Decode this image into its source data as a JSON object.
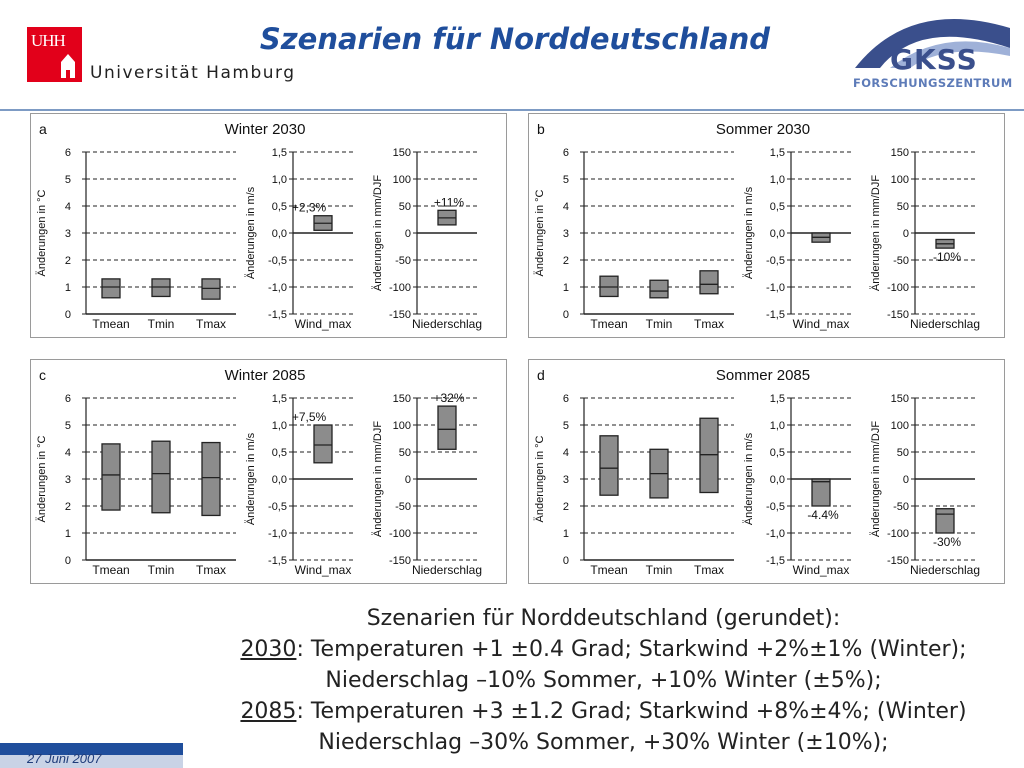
{
  "header": {
    "title": "Szenarien für Norddeutschland",
    "uhh_logo_text": "UHH",
    "university": "Universität Hamburg",
    "gkss": "GKSS",
    "gkss_sub": "FORSCHUNGSZENTRUM"
  },
  "colors": {
    "title": "#1f4e9c",
    "box_fill": "#8c8c8c",
    "uhh_red": "#e2001a"
  },
  "chart_data": [
    {
      "panel_letter": "a",
      "title": "Winter 2030",
      "type": "box",
      "subcharts": [
        {
          "ylabel": "Änderungen in °C",
          "ylim": [
            0,
            6
          ],
          "ticks": [
            "0",
            "1",
            "2",
            "3",
            "4",
            "5",
            "6"
          ],
          "tick_values": [
            0,
            1,
            2,
            3,
            4,
            5,
            6
          ],
          "categories": [
            "Tmean",
            "Tmin",
            "Tmax"
          ],
          "boxes": [
            {
              "low": 0.6,
              "high": 1.3,
              "mid": 1.0
            },
            {
              "low": 0.65,
              "high": 1.3,
              "mid": 1.0
            },
            {
              "low": 0.55,
              "high": 1.3,
              "mid": 0.95
            }
          ]
        },
        {
          "ylabel": "Änderungen in m/s",
          "ylim": [
            -1.5,
            1.5
          ],
          "ticks": [
            "-1,5",
            "-1,0",
            "-0,5",
            "0,0",
            "0,5",
            "1,0",
            "1,5"
          ],
          "tick_values": [
            -1.5,
            -1,
            -0.5,
            0,
            0.5,
            1,
            1.5
          ],
          "categories": [
            "Wind_max"
          ],
          "zero_line": true,
          "boxes": [
            {
              "low": 0.05,
              "high": 0.32,
              "mid": 0.18
            }
          ],
          "annotation": "+2,3%"
        },
        {
          "ylabel": "Änderungen in mm/DJF",
          "ylim": [
            -150,
            150
          ],
          "ticks": [
            "-150",
            "-100",
            "-50",
            "0",
            "50",
            "100",
            "150"
          ],
          "tick_values": [
            -150,
            -100,
            -50,
            0,
            50,
            100,
            150
          ],
          "categories": [
            "Niederschlag"
          ],
          "zero_line": true,
          "boxes": [
            {
              "low": 15,
              "high": 42,
              "mid": 28
            }
          ],
          "annotation": "+11%"
        }
      ]
    },
    {
      "panel_letter": "b",
      "title": "Sommer 2030",
      "type": "box",
      "subcharts": [
        {
          "ylabel": "Änderungen in °C",
          "ylim": [
            0,
            6
          ],
          "ticks": [
            "0",
            "1",
            "2",
            "3",
            "4",
            "5",
            "6"
          ],
          "tick_values": [
            0,
            1,
            2,
            3,
            4,
            5,
            6
          ],
          "categories": [
            "Tmean",
            "Tmin",
            "Tmax"
          ],
          "boxes": [
            {
              "low": 0.65,
              "high": 1.4,
              "mid": 1.0
            },
            {
              "low": 0.6,
              "high": 1.25,
              "mid": 0.85
            },
            {
              "low": 0.75,
              "high": 1.6,
              "mid": 1.1
            }
          ]
        },
        {
          "ylabel": "Änderungen in m/s",
          "ylim": [
            -1.5,
            1.5
          ],
          "ticks": [
            "-1,5",
            "-1,0",
            "-0,5",
            "0,0",
            "0,5",
            "1,0",
            "1,5"
          ],
          "tick_values": [
            -1.5,
            -1,
            -0.5,
            0,
            0.5,
            1,
            1.5
          ],
          "categories": [
            "Wind_max"
          ],
          "zero_line": true,
          "boxes": [
            {
              "low": -0.17,
              "high": 0.0,
              "mid": -0.08
            }
          ]
        },
        {
          "ylabel": "Änderungen in mm/DJF",
          "ylim": [
            -150,
            150
          ],
          "ticks": [
            "-150",
            "-100",
            "-50",
            "0",
            "50",
            "100",
            "150"
          ],
          "tick_values": [
            -150,
            -100,
            -50,
            0,
            50,
            100,
            150
          ],
          "categories": [
            "Niederschlag"
          ],
          "zero_line": true,
          "boxes": [
            {
              "low": -28,
              "high": -12,
              "mid": -20
            }
          ],
          "annotation": "-10%"
        }
      ]
    },
    {
      "panel_letter": "c",
      "title": "Winter 2085",
      "type": "box",
      "subcharts": [
        {
          "ylabel": "Änderungen in °C",
          "ylim": [
            0,
            6
          ],
          "ticks": [
            "0",
            "1",
            "2",
            "3",
            "4",
            "5",
            "6"
          ],
          "tick_values": [
            0,
            1,
            2,
            3,
            4,
            5,
            6
          ],
          "categories": [
            "Tmean",
            "Tmin",
            "Tmax"
          ],
          "boxes": [
            {
              "low": 1.85,
              "high": 4.3,
              "mid": 3.15
            },
            {
              "low": 1.75,
              "high": 4.4,
              "mid": 3.2
            },
            {
              "low": 1.65,
              "high": 4.35,
              "mid": 3.05
            }
          ]
        },
        {
          "ylabel": "Änderungen in m/s",
          "ylim": [
            -1.5,
            1.5
          ],
          "ticks": [
            "-1,5",
            "-1,0",
            "-0,5",
            "0,0",
            "0,5",
            "1,0",
            "1,5"
          ],
          "tick_values": [
            -1.5,
            -1,
            -0.5,
            0,
            0.5,
            1,
            1.5
          ],
          "categories": [
            "Wind_max"
          ],
          "zero_line": true,
          "boxes": [
            {
              "low": 0.3,
              "high": 1.0,
              "mid": 0.63
            }
          ],
          "annotation": "+7,5%"
        },
        {
          "ylabel": "Änderungen in mm/DJF",
          "ylim": [
            -150,
            150
          ],
          "ticks": [
            "-150",
            "-100",
            "-50",
            "0",
            "50",
            "100",
            "150"
          ],
          "tick_values": [
            -150,
            -100,
            -50,
            0,
            50,
            100,
            150
          ],
          "categories": [
            "Niederschlag"
          ],
          "zero_line": true,
          "boxes": [
            {
              "low": 55,
              "high": 135,
              "mid": 92
            }
          ],
          "annotation": "+32%"
        }
      ]
    },
    {
      "panel_letter": "d",
      "title": "Sommer 2085",
      "type": "box",
      "subcharts": [
        {
          "ylabel": "Änderungen in °C",
          "ylim": [
            0,
            6
          ],
          "ticks": [
            "0",
            "1",
            "2",
            "3",
            "4",
            "5",
            "6"
          ],
          "tick_values": [
            0,
            1,
            2,
            3,
            4,
            5,
            6
          ],
          "categories": [
            "Tmean",
            "Tmin",
            "Tmax"
          ],
          "boxes": [
            {
              "low": 2.4,
              "high": 4.6,
              "mid": 3.4
            },
            {
              "low": 2.3,
              "high": 4.1,
              "mid": 3.2
            },
            {
              "low": 2.5,
              "high": 5.25,
              "mid": 3.9
            }
          ]
        },
        {
          "ylabel": "Änderungen in m/s",
          "ylim": [
            -1.5,
            1.5
          ],
          "ticks": [
            "-1,5",
            "-1,0",
            "-0,5",
            "0,0",
            "0,5",
            "1,0",
            "1,5"
          ],
          "tick_values": [
            -1.5,
            -1,
            -0.5,
            0,
            0.5,
            1,
            1.5
          ],
          "categories": [
            "Wind_max"
          ],
          "zero_line": true,
          "boxes": [
            {
              "low": -0.5,
              "high": 0.0,
              "mid": -0.05
            }
          ],
          "annotation": "-4.4%"
        },
        {
          "ylabel": "Änderungen in mm/DJF",
          "ylim": [
            -150,
            150
          ],
          "ticks": [
            "-150",
            "-100",
            "-50",
            "0",
            "50",
            "100",
            "150"
          ],
          "tick_values": [
            -150,
            -100,
            -50,
            0,
            50,
            100,
            150
          ],
          "categories": [
            "Niederschlag"
          ],
          "zero_line": true,
          "boxes": [
            {
              "low": -100,
              "high": -55,
              "mid": -65
            }
          ],
          "annotation": "-30%"
        }
      ]
    }
  ],
  "summary": {
    "line1": "Szenarien für Norddeutschland (gerundet):",
    "line2_year": "2030",
    "line2_rest": ":  Temperaturen +1 ±0.4 Grad;  Starkwind +2%±1% (Winter);",
    "line3": "Niederschlag –10% Sommer, +10% Winter (±5%);",
    "line4_year": "2085",
    "line4_rest": ": Temperaturen +3 ±1.2 Grad;  Starkwind +8%±4%; (Winter)",
    "line5": "Niederschlag –30% Sommer, +30% Winter (±10%);"
  },
  "footer": {
    "date": "27 Juni 2007"
  }
}
